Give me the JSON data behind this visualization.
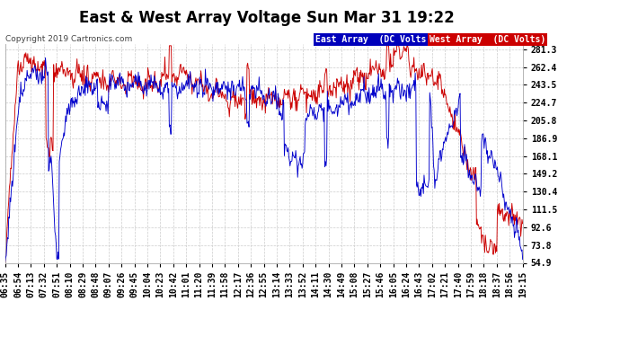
{
  "title": "East & West Array Voltage Sun Mar 31 19:22",
  "copyright": "Copyright 2019 Cartronics.com",
  "east_label": "East Array  (DC Volts)",
  "west_label": "West Array  (DC Volts)",
  "east_color": "#0000cc",
  "west_color": "#cc0000",
  "legend_east_bg": "#0000bb",
  "legend_west_bg": "#cc0000",
  "background_color": "#ffffff",
  "plot_bg_color": "#ffffff",
  "grid_color": "#cccccc",
  "yticks": [
    54.9,
    73.8,
    92.6,
    111.5,
    130.4,
    149.2,
    168.1,
    186.9,
    205.8,
    224.7,
    243.5,
    262.4,
    281.3
  ],
  "ymin": 54.9,
  "ymax": 287.0,
  "title_fontsize": 12,
  "tick_fontsize": 7,
  "xtick_labels": [
    "06:35",
    "06:54",
    "07:13",
    "07:32",
    "07:51",
    "08:10",
    "08:29",
    "08:48",
    "09:07",
    "09:26",
    "09:45",
    "10:04",
    "10:23",
    "10:42",
    "11:01",
    "11:20",
    "11:39",
    "11:58",
    "12:17",
    "12:36",
    "12:55",
    "13:14",
    "13:33",
    "13:52",
    "14:11",
    "14:30",
    "14:49",
    "15:08",
    "15:27",
    "15:46",
    "16:05",
    "16:24",
    "16:43",
    "17:02",
    "17:21",
    "17:40",
    "17:59",
    "18:18",
    "18:37",
    "18:56",
    "19:15"
  ]
}
